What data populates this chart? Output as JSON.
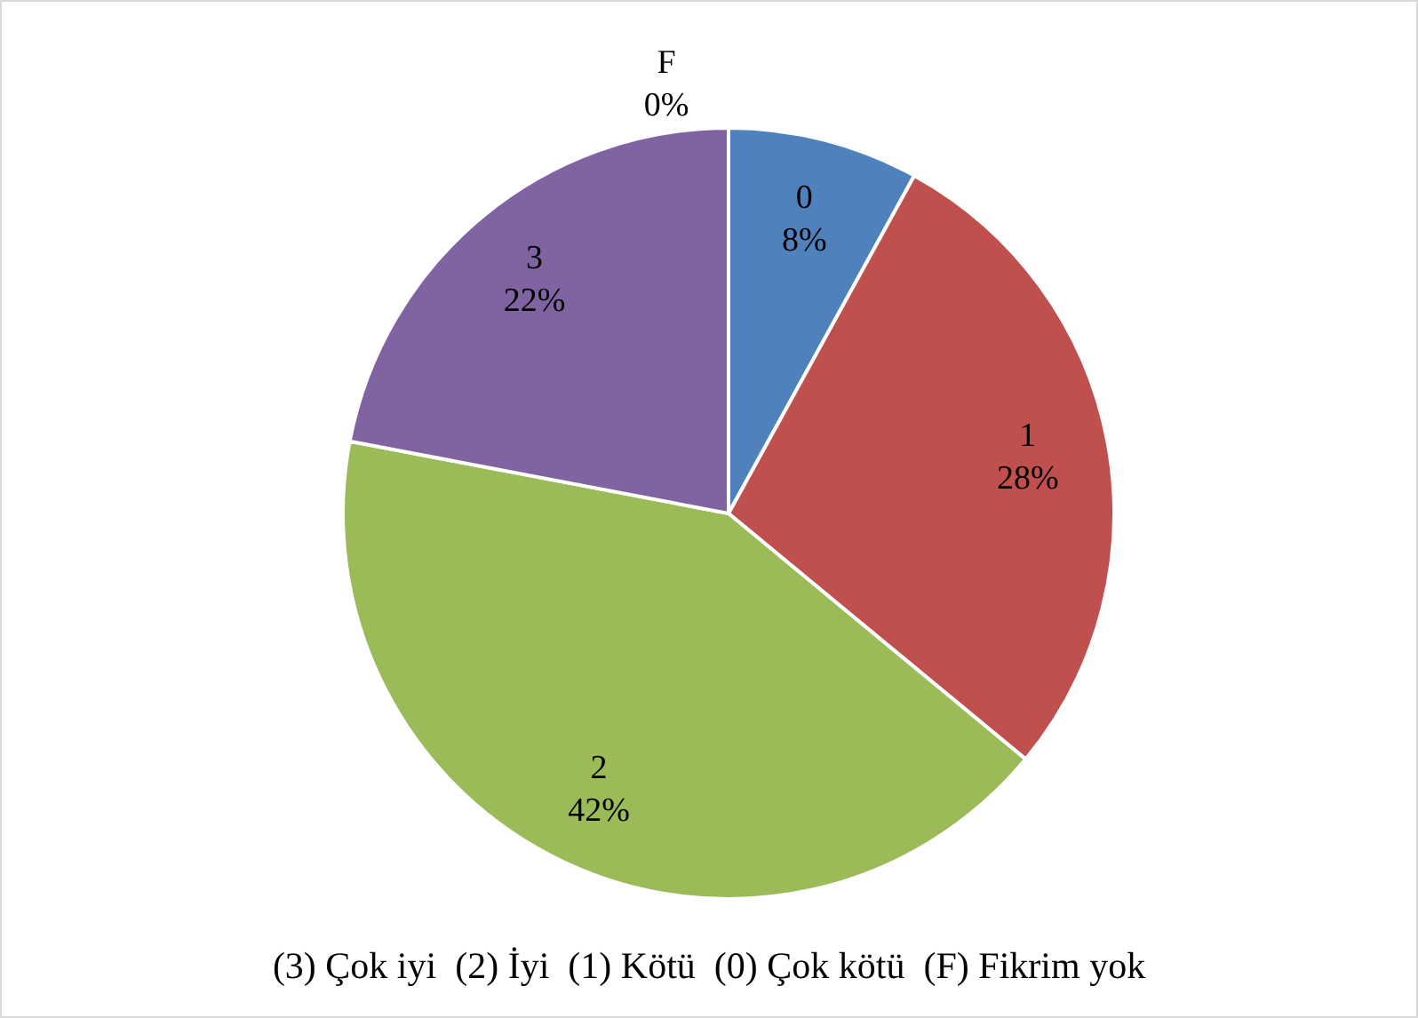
{
  "chart_data": {
    "type": "pie",
    "categories": [
      "0",
      "1",
      "2",
      "3",
      "F"
    ],
    "values": [
      8,
      28,
      42,
      22,
      0
    ],
    "value_labels": [
      "8%",
      "28%",
      "42%",
      "22%",
      "0%"
    ],
    "colors": [
      "#4f81bd",
      "#c0504d",
      "#9bbb59",
      "#8064a2",
      "#f79646"
    ],
    "legend": false,
    "annotations": [
      "(3) Çok iyi  (2) İyi  (1) Kötü  (0) Çok kötü  (F) Fikrim yok"
    ]
  }
}
